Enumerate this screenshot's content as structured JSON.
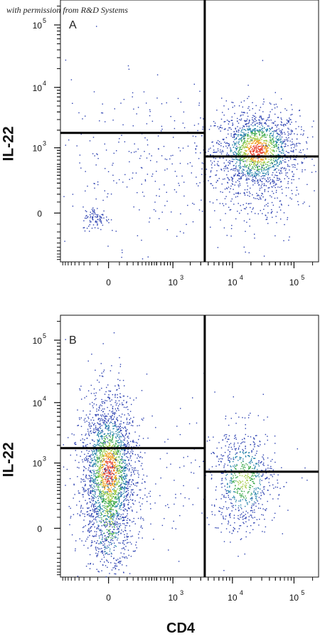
{
  "watermark": "with permission from R&D Systems",
  "chart_data": [
    {
      "type": "scatter",
      "panel_label": "A",
      "xlabel": "",
      "ylabel": "IL-22",
      "x_scale": "biexponential",
      "y_scale": "biexponential",
      "x_tick_labels": [
        {
          "base": "0",
          "exp": ""
        },
        {
          "base": "10",
          "exp": "3"
        },
        {
          "base": "10",
          "exp": "4"
        },
        {
          "base": "10",
          "exp": "5"
        }
      ],
      "y_tick_labels": [
        {
          "base": "0",
          "exp": ""
        },
        {
          "base": "10",
          "exp": "3"
        },
        {
          "base": "10",
          "exp": "4"
        },
        {
          "base": "10",
          "exp": "5"
        }
      ],
      "gates": {
        "vertical_x": 3500,
        "left_horizontal_y": 1800,
        "right_horizontal_y": 700
      },
      "populations": [
        {
          "name": "",
          "center": [
            25000,
            900
          ],
          "spread": [
            0.18,
            0.17
          ],
          "count": 1600,
          "density": "high"
        },
        {
          "name": "",
          "center": [
            25000,
            90
          ],
          "spread": [
            0.2,
            0.2
          ],
          "count": 160,
          "density": "low"
        },
        {
          "name": "",
          "center": [
            -60,
            -20
          ],
          "spread": [
            0.06,
            0.05
          ],
          "count": 90,
          "density": "low"
        },
        {
          "name": "",
          "center": [
            600,
            700
          ],
          "spread": [
            0.55,
            0.3
          ],
          "count": 260,
          "density": "low"
        },
        {
          "name": "",
          "center": [
            200,
            150
          ],
          "spread": [
            0.6,
            0.6
          ],
          "count": 90,
          "density": "low"
        }
      ]
    },
    {
      "type": "scatter",
      "panel_label": "B",
      "xlabel": "CD4",
      "ylabel": "IL-22",
      "x_scale": "biexponential",
      "y_scale": "biexponential",
      "x_tick_labels": [
        {
          "base": "0",
          "exp": ""
        },
        {
          "base": "10",
          "exp": "3"
        },
        {
          "base": "10",
          "exp": "4"
        },
        {
          "base": "10",
          "exp": "5"
        }
      ],
      "y_tick_labels": [
        {
          "base": "0",
          "exp": ""
        },
        {
          "base": "10",
          "exp": "3"
        },
        {
          "base": "10",
          "exp": "4"
        },
        {
          "base": "10",
          "exp": "5"
        }
      ],
      "gates": {
        "vertical_x": 3500,
        "left_horizontal_y": 1800,
        "right_horizontal_y": 700
      },
      "populations": [
        {
          "name": "",
          "center": [
            0,
            700
          ],
          "spread": [
            0.12,
            0.33
          ],
          "count": 2200,
          "density": "high"
        },
        {
          "name": "",
          "center": [
            0,
            60
          ],
          "spread": [
            0.1,
            0.3
          ],
          "count": 400,
          "density": "medium"
        },
        {
          "name": "",
          "center": [
            15000,
            500
          ],
          "spread": [
            0.14,
            0.22
          ],
          "count": 700,
          "density": "medium"
        },
        {
          "name": "",
          "center": [
            500,
            500
          ],
          "spread": [
            0.5,
            0.4
          ],
          "count": 160,
          "density": "low"
        }
      ]
    }
  ]
}
